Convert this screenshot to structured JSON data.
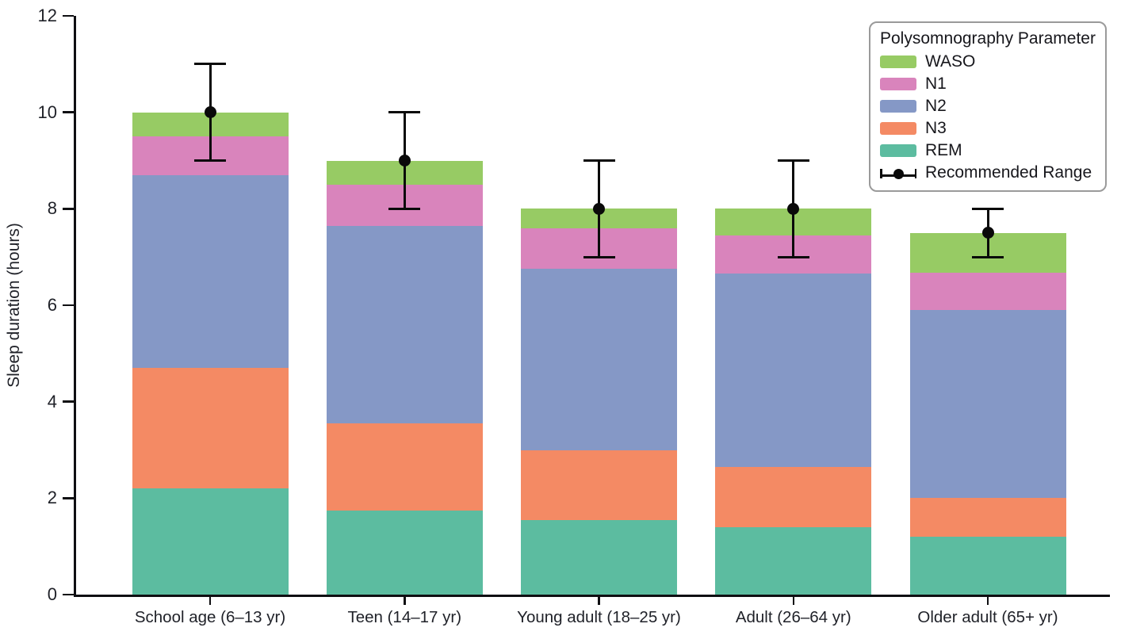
{
  "chart_data": {
    "type": "bar",
    "stacked": true,
    "title": "",
    "xlabel": "",
    "ylabel": "Sleep duration (hours)",
    "ylim": [
      0,
      12
    ],
    "yticks": [
      0,
      2,
      4,
      6,
      8,
      10,
      12
    ],
    "grid": false,
    "categories": [
      "School age (6–13 yr)",
      "Teen (14–17 yr)",
      "Young adult (18–25 yr)",
      "Adult (26–64 yr)",
      "Older adult (65+ yr)"
    ],
    "series": [
      {
        "name": "REM",
        "color": "#5cbca0",
        "values": [
          2.2,
          1.75,
          1.55,
          1.4,
          1.2
        ]
      },
      {
        "name": "N3",
        "color": "#f48a64",
        "values": [
          2.5,
          1.8,
          1.45,
          1.25,
          0.8
        ]
      },
      {
        "name": "N2",
        "color": "#8598c6",
        "values": [
          4.0,
          4.1,
          3.75,
          4.0,
          3.9
        ]
      },
      {
        "name": "N1",
        "color": "#d984bc",
        "values": [
          0.8,
          0.85,
          0.85,
          0.8,
          0.78
        ]
      },
      {
        "name": "WASO",
        "color": "#97cb64",
        "values": [
          0.5,
          0.5,
          0.4,
          0.55,
          0.82
        ]
      }
    ],
    "bar_totals": [
      10.0,
      9.0,
      8.0,
      8.0,
      7.5
    ],
    "error_bars": {
      "name": "Recommended Range",
      "color": "#0a0a0a",
      "center": [
        10.0,
        9.0,
        8.0,
        8.0,
        7.5
      ],
      "low": [
        9.0,
        8.0,
        7.0,
        7.0,
        7.0
      ],
      "high": [
        11.0,
        10.0,
        9.0,
        9.0,
        8.0
      ]
    },
    "legend": {
      "title": "Polysomnography Parameter",
      "position": "top-right",
      "entries": [
        "WASO",
        "N1",
        "N2",
        "N3",
        "REM",
        "Recommended Range"
      ]
    }
  }
}
